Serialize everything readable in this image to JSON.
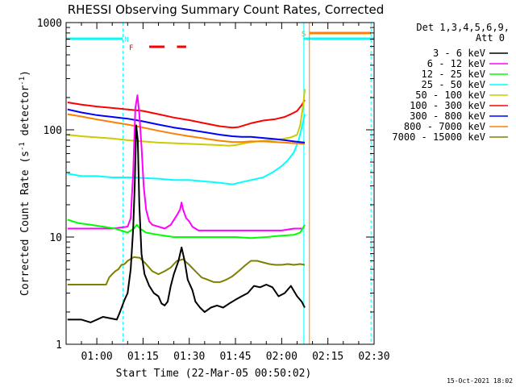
{
  "chart_data": {
    "type": "line",
    "title": "RHESSI Observing Summary Count Rates, Corrected",
    "xlabel": "Start Time (22-Mar-05 00:50:02)",
    "ylabel_main": "Corrected Count Rate (s",
    "ylabel_sup1": "-1",
    "ylabel_mid": " detector",
    "ylabel_sup2": "-1",
    "ylabel_end": ")",
    "xlim_min": [
      50.03,
      150
    ],
    "ylim": [
      1,
      1000
    ],
    "yscale": "log",
    "xticks": [
      {
        "t": 60,
        "label": "01:00"
      },
      {
        "t": 75,
        "label": "01:15"
      },
      {
        "t": 90,
        "label": "01:30"
      },
      {
        "t": 105,
        "label": "01:45"
      },
      {
        "t": 120,
        "label": "02:00"
      },
      {
        "t": 135,
        "label": "02:15"
      },
      {
        "t": 150,
        "label": "02:30"
      }
    ],
    "yticks": [
      {
        "v": 1,
        "label": "1"
      },
      {
        "v": 10,
        "label": "10"
      },
      {
        "v": 100,
        "label": "100"
      },
      {
        "v": 1000,
        "label": "1000"
      }
    ],
    "legend_header": [
      "Det 1,3,4,5,6,9,",
      "Att 0"
    ],
    "series": [
      {
        "name": "3 - 6 keV",
        "color": "#000000",
        "points": [
          [
            50.5,
            1.7
          ],
          [
            55,
            1.7
          ],
          [
            58,
            1.6
          ],
          [
            62,
            1.8
          ],
          [
            66.5,
            1.7
          ],
          [
            67.5,
            2
          ],
          [
            69,
            2.6
          ],
          [
            70,
            3
          ],
          [
            71,
            5
          ],
          [
            71.8,
            12
          ],
          [
            72.3,
            30
          ],
          [
            72.8,
            110
          ],
          [
            73.3,
            80
          ],
          [
            73.8,
            20
          ],
          [
            74.5,
            7
          ],
          [
            75.5,
            4.5
          ],
          [
            77,
            3.5
          ],
          [
            78.5,
            3
          ],
          [
            80,
            2.8
          ],
          [
            81,
            2.4
          ],
          [
            82,
            2.3
          ],
          [
            83,
            2.5
          ],
          [
            84,
            3.5
          ],
          [
            85,
            4.5
          ],
          [
            86.5,
            6
          ],
          [
            87.5,
            8
          ],
          [
            88.5,
            6
          ],
          [
            89.5,
            4
          ],
          [
            91,
            3.2
          ],
          [
            92,
            2.5
          ],
          [
            93.5,
            2.2
          ],
          [
            95,
            2
          ],
          [
            97,
            2.2
          ],
          [
            99,
            2.3
          ],
          [
            101,
            2.2
          ],
          [
            103,
            2.4
          ],
          [
            105,
            2.6
          ],
          [
            107,
            2.8
          ],
          [
            109,
            3
          ],
          [
            111,
            3.5
          ],
          [
            113,
            3.4
          ],
          [
            115,
            3.6
          ],
          [
            117,
            3.4
          ],
          [
            119,
            2.8
          ],
          [
            121,
            3
          ],
          [
            123,
            3.5
          ],
          [
            125,
            2.8
          ],
          [
            126.5,
            2.5
          ],
          [
            127.5,
            2.2
          ]
        ]
      },
      {
        "name": "6 - 12 keV",
        "color": "#ff00ff",
        "points": [
          [
            50.5,
            12
          ],
          [
            55,
            12
          ],
          [
            60,
            12
          ],
          [
            65,
            12
          ],
          [
            70,
            12.5
          ],
          [
            71,
            15
          ],
          [
            71.8,
            40
          ],
          [
            72.5,
            160
          ],
          [
            73.2,
            210
          ],
          [
            73.8,
            140
          ],
          [
            74.5,
            70
          ],
          [
            75.2,
            30
          ],
          [
            76,
            18
          ],
          [
            77,
            14
          ],
          [
            78,
            13
          ],
          [
            80,
            12.5
          ],
          [
            82,
            12
          ],
          [
            84,
            13
          ],
          [
            86,
            16
          ],
          [
            87,
            18
          ],
          [
            87.5,
            21
          ],
          [
            88,
            18
          ],
          [
            89,
            15
          ],
          [
            90,
            14
          ],
          [
            91,
            12.5
          ],
          [
            93,
            11.5
          ],
          [
            96,
            11.5
          ],
          [
            100,
            11.5
          ],
          [
            105,
            11.5
          ],
          [
            110,
            11.5
          ],
          [
            115,
            11.5
          ],
          [
            120,
            11.5
          ],
          [
            124,
            12
          ],
          [
            127,
            12
          ]
        ]
      },
      {
        "name": "12 - 25 keV",
        "color": "#00ff00",
        "points": [
          [
            50.5,
            14.5
          ],
          [
            54,
            13.5
          ],
          [
            58,
            13
          ],
          [
            62,
            12.5
          ],
          [
            66,
            12
          ],
          [
            70,
            11
          ],
          [
            72,
            12
          ],
          [
            73,
            13
          ],
          [
            74,
            12
          ],
          [
            76,
            11
          ],
          [
            80,
            10.5
          ],
          [
            85,
            10
          ],
          [
            90,
            10
          ],
          [
            95,
            10
          ],
          [
            100,
            10
          ],
          [
            105,
            10
          ],
          [
            110,
            9.8
          ],
          [
            115,
            10
          ],
          [
            120,
            10.3
          ],
          [
            124,
            10.5
          ],
          [
            126,
            11
          ],
          [
            127.5,
            13
          ]
        ]
      },
      {
        "name": "25 - 50 keV",
        "color": "#00ffff",
        "points": [
          [
            50.5,
            39
          ],
          [
            55,
            37
          ],
          [
            60,
            37
          ],
          [
            65,
            36
          ],
          [
            70,
            36
          ],
          [
            75,
            35.5
          ],
          [
            80,
            35
          ],
          [
            85,
            34
          ],
          [
            90,
            34
          ],
          [
            95,
            33
          ],
          [
            100,
            32
          ],
          [
            104,
            31
          ],
          [
            106,
            32
          ],
          [
            110,
            34
          ],
          [
            114,
            36
          ],
          [
            117,
            40
          ],
          [
            120,
            46
          ],
          [
            122,
            52
          ],
          [
            124,
            62
          ],
          [
            125.5,
            80
          ],
          [
            126.5,
            105
          ],
          [
            127.5,
            140
          ]
        ]
      },
      {
        "name": "50 - 100 keV",
        "color": "#cccc00",
        "points": [
          [
            50.5,
            90
          ],
          [
            55,
            87
          ],
          [
            60,
            85
          ],
          [
            65,
            83
          ],
          [
            70,
            80
          ],
          [
            75,
            78
          ],
          [
            80,
            76
          ],
          [
            85,
            75
          ],
          [
            90,
            74
          ],
          [
            95,
            73
          ],
          [
            100,
            72
          ],
          [
            103,
            71
          ],
          [
            105,
            72
          ],
          [
            108,
            75
          ],
          [
            112,
            78
          ],
          [
            116,
            80
          ],
          [
            120,
            82
          ],
          [
            123,
            85
          ],
          [
            125,
            90
          ],
          [
            126,
            110
          ],
          [
            127,
            170
          ],
          [
            127.5,
            240
          ]
        ]
      },
      {
        "name": "100 - 300 keV",
        "color": "#ff0000",
        "points": [
          [
            50.5,
            180
          ],
          [
            55,
            172
          ],
          [
            60,
            165
          ],
          [
            65,
            160
          ],
          [
            70,
            155
          ],
          [
            75,
            150
          ],
          [
            80,
            140
          ],
          [
            85,
            130
          ],
          [
            90,
            123
          ],
          [
            95,
            115
          ],
          [
            100,
            108
          ],
          [
            104,
            105
          ],
          [
            106,
            106
          ],
          [
            110,
            115
          ],
          [
            114,
            122
          ],
          [
            118,
            126
          ],
          [
            121,
            132
          ],
          [
            123,
            140
          ],
          [
            125,
            150
          ],
          [
            126.5,
            170
          ],
          [
            127.5,
            190
          ]
        ]
      },
      {
        "name": "300 - 800 keV",
        "color": "#0000ff",
        "points": [
          [
            50.5,
            155
          ],
          [
            55,
            145
          ],
          [
            60,
            137
          ],
          [
            65,
            132
          ],
          [
            70,
            127
          ],
          [
            75,
            120
          ],
          [
            80,
            112
          ],
          [
            85,
            105
          ],
          [
            90,
            100
          ],
          [
            95,
            95
          ],
          [
            100,
            90
          ],
          [
            104,
            87
          ],
          [
            107,
            86
          ],
          [
            110,
            86
          ],
          [
            114,
            84
          ],
          [
            118,
            82
          ],
          [
            121,
            80
          ],
          [
            124,
            78
          ],
          [
            127.5,
            76
          ]
        ]
      },
      {
        "name": "800 - 7000 keV",
        "color": "#ff8000",
        "points": [
          [
            50.5,
            140
          ],
          [
            55,
            133
          ],
          [
            60,
            125
          ],
          [
            65,
            118
          ],
          [
            70,
            112
          ],
          [
            75,
            105
          ],
          [
            80,
            98
          ],
          [
            85,
            92
          ],
          [
            90,
            87
          ],
          [
            95,
            83
          ],
          [
            100,
            79
          ],
          [
            104,
            77
          ],
          [
            107,
            77
          ],
          [
            110,
            78
          ],
          [
            114,
            78
          ],
          [
            118,
            77
          ],
          [
            121,
            76
          ],
          [
            124,
            75
          ],
          [
            127.5,
            74
          ]
        ]
      },
      {
        "name": "7000 - 15000 keV",
        "color": "#808000",
        "points": [
          [
            50.5,
            3.6
          ],
          [
            55,
            3.6
          ],
          [
            60,
            3.6
          ],
          [
            63,
            3.6
          ],
          [
            64,
            4.2
          ],
          [
            65,
            4.5
          ],
          [
            66,
            4.8
          ],
          [
            67,
            5
          ],
          [
            68,
            5.5
          ],
          [
            69,
            5.6
          ],
          [
            70,
            6
          ],
          [
            72,
            6.5
          ],
          [
            74,
            6.4
          ],
          [
            76,
            5.6
          ],
          [
            78,
            4.8
          ],
          [
            80,
            4.5
          ],
          [
            82,
            4.8
          ],
          [
            84,
            5.2
          ],
          [
            86,
            6
          ],
          [
            88,
            6.2
          ],
          [
            90,
            5.5
          ],
          [
            92,
            4.8
          ],
          [
            94,
            4.2
          ],
          [
            96,
            4
          ],
          [
            98,
            3.8
          ],
          [
            100,
            3.8
          ],
          [
            102,
            4
          ],
          [
            104,
            4.3
          ],
          [
            106,
            4.8
          ],
          [
            108,
            5.4
          ],
          [
            110,
            6
          ],
          [
            112,
            6
          ],
          [
            114,
            5.8
          ],
          [
            116,
            5.6
          ],
          [
            118,
            5.5
          ],
          [
            120,
            5.5
          ],
          [
            122,
            5.6
          ],
          [
            124,
            5.5
          ],
          [
            126,
            5.6
          ],
          [
            127.5,
            5.5
          ]
        ]
      }
    ],
    "flags": [
      {
        "label": "N",
        "color": "#00ffff"
      },
      {
        "label": "F",
        "color": "#ff0000"
      },
      {
        "label": "S",
        "color": "#ff8000"
      }
    ],
    "annotation_lines": [
      {
        "t": 68.5,
        "color": "#00ffff",
        "style": "dashed"
      },
      {
        "t": 127.2,
        "color": "#00ffff",
        "style": "solid"
      },
      {
        "t": 129.0,
        "color": "#ff8000",
        "style": "solid"
      },
      {
        "t": 149.0,
        "color": "#00ffff",
        "style": "dashed"
      }
    ],
    "footer_date": "15-Oct-2021 18:02"
  }
}
